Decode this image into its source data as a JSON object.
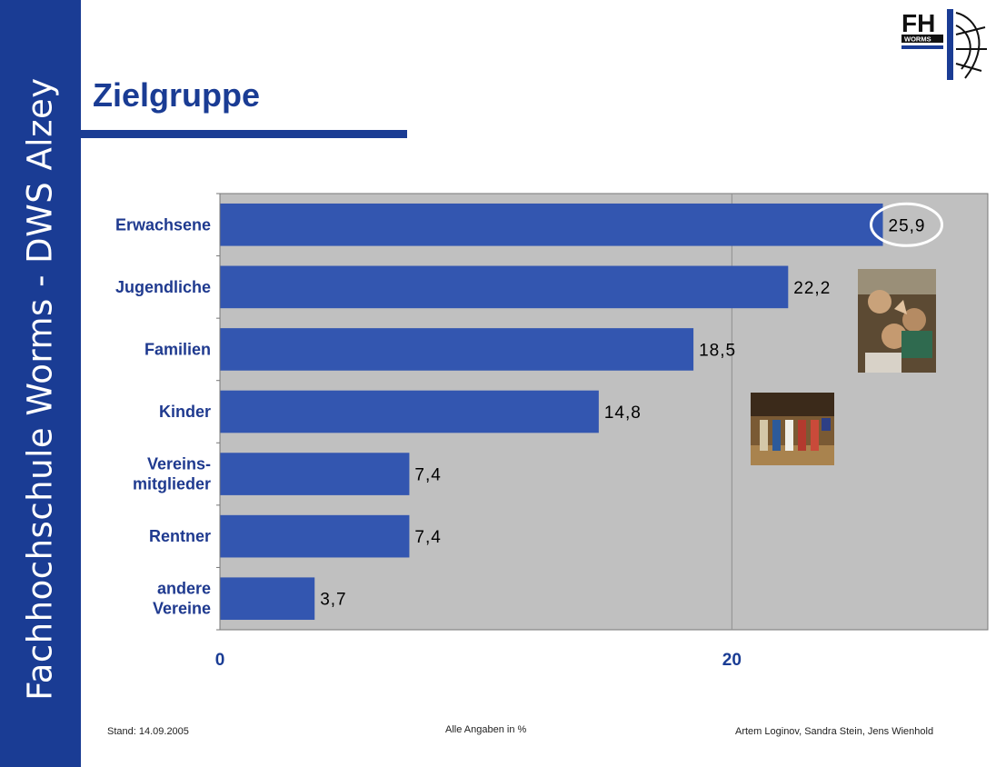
{
  "sidebar": {
    "text": "Fachhochschule Worms - DWS Alzey"
  },
  "header": {
    "title": "Zielgruppe"
  },
  "logo": {
    "text": "FH",
    "subtext": "WORMS"
  },
  "footer": {
    "left": "Stand: 14.09.2005",
    "center": "Alle Angaben in %",
    "right": "Artem Loginov, Sandra Stein, Jens Wienhold"
  },
  "colors": {
    "brand": "#1a3c94",
    "bar": "#3356b0",
    "plot_bg": "#c0c0c0",
    "label_text": "#1f3a8f"
  },
  "photos": [
    {
      "name": "photo-youths",
      "icon": "photo-icon"
    },
    {
      "name": "photo-children-stage",
      "icon": "photo-icon"
    }
  ],
  "chart_data": {
    "type": "bar",
    "orientation": "horizontal",
    "categories": [
      [
        "Erwachsene"
      ],
      [
        "Jugendliche"
      ],
      [
        "Familien"
      ],
      [
        "Kinder"
      ],
      [
        "Vereins-",
        "mitglieder"
      ],
      [
        "Rentner"
      ],
      [
        "andere",
        "Vereine"
      ]
    ],
    "values": [
      25.9,
      22.2,
      18.5,
      14.8,
      7.4,
      7.4,
      3.7
    ],
    "value_labels": [
      "25,9",
      "22,2",
      "18,5",
      "14,8",
      "7,4",
      "7,4",
      "3,7"
    ],
    "xlim": [
      0,
      30
    ],
    "xticks": [
      0,
      20
    ],
    "xtick_labels": [
      "0",
      "20"
    ],
    "gridlines": [
      20
    ],
    "highlight_index": 0,
    "title": "",
    "xlabel": "",
    "ylabel": ""
  }
}
